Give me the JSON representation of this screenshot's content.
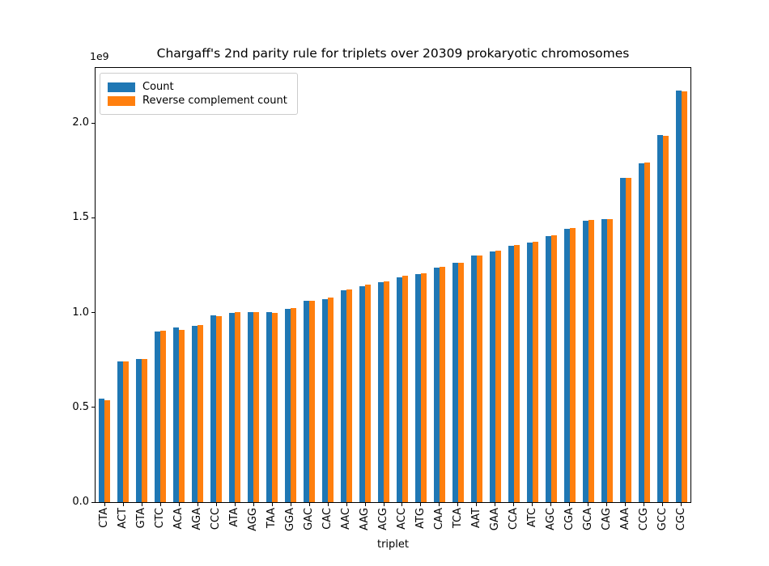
{
  "title": "Chargaff's 2nd parity rule for triplets over 20309 prokaryotic chromosomes",
  "axes": {
    "xlabel": "triplet",
    "offset_label": "1e9",
    "ytick_labels": [
      "0.0",
      "0.5",
      "1.0",
      "1.5",
      "2.0"
    ]
  },
  "legend": {
    "items": [
      {
        "label": "Count",
        "color": "#1f77b4"
      },
      {
        "label": "Reverse complement count",
        "color": "#ff7f0e"
      }
    ]
  },
  "chart_data": {
    "type": "bar",
    "title": "Chargaff's 2nd parity rule for triplets over 20309 prokaryotic chromosomes",
    "xlabel": "triplet",
    "ylabel": "",
    "unit_multiplier": "1e9",
    "ylim_1e9": [
      0,
      2.29
    ],
    "yticks_1e9": [
      0.0,
      0.5,
      1.0,
      1.5,
      2.0
    ],
    "grid": false,
    "legend_position": "upper left",
    "categories": [
      "CTA",
      "ACT",
      "GTA",
      "CTC",
      "ACA",
      "AGA",
      "CCC",
      "ATA",
      "AGG",
      "TAA",
      "GGA",
      "GAC",
      "CAC",
      "AAC",
      "AAG",
      "ACG",
      "ACC",
      "ATG",
      "CAA",
      "TCA",
      "AAT",
      "GAA",
      "CCA",
      "ATC",
      "AGC",
      "CGA",
      "GCA",
      "CAG",
      "AAA",
      "CCG",
      "GCC",
      "CGC"
    ],
    "series": [
      {
        "name": "Count",
        "color": "#1f77b4",
        "values_1e9": [
          0.545,
          0.742,
          0.756,
          0.9,
          0.92,
          0.931,
          0.986,
          1.0,
          1.001,
          1.002,
          1.018,
          1.06,
          1.072,
          1.118,
          1.14,
          1.161,
          1.186,
          1.203,
          1.238,
          1.262,
          1.3,
          1.324,
          1.352,
          1.371,
          1.402,
          1.442,
          1.485,
          1.491,
          1.709,
          1.787,
          1.934,
          2.172
        ]
      },
      {
        "name": "Reverse complement count",
        "color": "#ff7f0e",
        "values_1e9": [
          0.537,
          0.74,
          0.755,
          0.904,
          0.91,
          0.933,
          0.982,
          1.001,
          1.003,
          1.0,
          1.022,
          1.063,
          1.078,
          1.121,
          1.146,
          1.164,
          1.192,
          1.206,
          1.241,
          1.264,
          1.302,
          1.326,
          1.355,
          1.374,
          1.406,
          1.446,
          1.49,
          1.494,
          1.711,
          1.79,
          1.933,
          2.167
        ]
      }
    ]
  }
}
